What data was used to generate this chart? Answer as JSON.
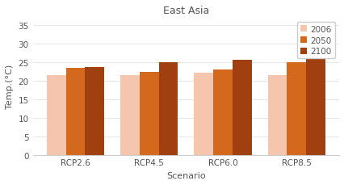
{
  "title": "East Asia",
  "xlabel": "Scenario",
  "ylabel": "Temp.(°C)",
  "categories": [
    "RCP2.6",
    "RCP4.5",
    "RCP6.0",
    "RCP8.5"
  ],
  "series": {
    "2006": [
      21.5,
      21.5,
      22.2,
      21.5
    ],
    "2050": [
      23.5,
      22.3,
      23.0,
      24.9
    ],
    "2100": [
      23.6,
      24.9,
      25.6,
      27.5
    ]
  },
  "colors": {
    "2006": "#f5c5ae",
    "2050": "#d4691e",
    "2100": "#a04010"
  },
  "ylim": [
    0,
    37
  ],
  "yticks": [
    0,
    5,
    10,
    15,
    20,
    25,
    30,
    35
  ],
  "legend_labels": [
    "2006",
    "2050",
    "2100"
  ],
  "background_color": "#ffffff",
  "title_fontsize": 9,
  "axis_fontsize": 8,
  "tick_fontsize": 7.5,
  "legend_fontsize": 7.5
}
